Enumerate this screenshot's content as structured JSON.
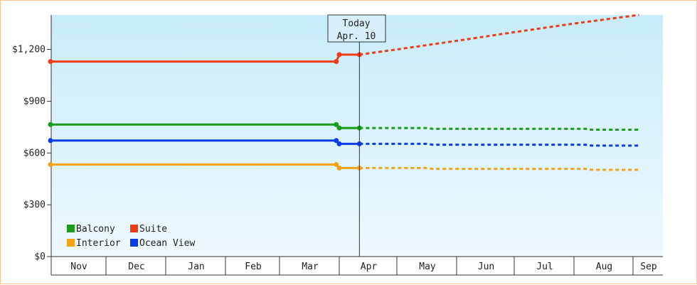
{
  "chart_data": {
    "type": "line",
    "y_axis": {
      "ticks": [
        0,
        300,
        600,
        900,
        1200
      ],
      "tick_labels": [
        "$0",
        "$300",
        "$600",
        "$900",
        "$1,200"
      ],
      "ylim": [
        0,
        1400
      ]
    },
    "x_axis": {
      "months": [
        "Nov",
        "Dec",
        "Jan",
        "Feb",
        "Mar",
        "Apr",
        "May",
        "Jun",
        "Jul",
        "Aug",
        "Sep"
      ]
    },
    "today_marker": {
      "line1": "Today",
      "line2": "Apr. 10"
    },
    "series": [
      {
        "name": "Suite",
        "color": "#ee3d16",
        "historical": [
          [
            0,
            1130
          ],
          [
            4.95,
            1130
          ],
          [
            5.0,
            1170
          ],
          [
            5.35,
            1170
          ]
        ],
        "forecast": [
          [
            5.35,
            1170
          ],
          [
            6.0,
            1200
          ],
          [
            7.0,
            1250
          ],
          [
            8.0,
            1300
          ],
          [
            9.0,
            1350
          ],
          [
            10.2,
            1400
          ]
        ]
      },
      {
        "name": "Balcony",
        "color": "#1a9b1a",
        "historical": [
          [
            0,
            765
          ],
          [
            4.95,
            765
          ],
          [
            5.0,
            745
          ],
          [
            5.35,
            745
          ]
        ],
        "forecast": [
          [
            5.35,
            745
          ],
          [
            6.5,
            745
          ],
          [
            6.6,
            740
          ],
          [
            9.2,
            740
          ],
          [
            9.3,
            735
          ],
          [
            10.2,
            735
          ]
        ]
      },
      {
        "name": "Ocean View",
        "color": "#0b3be8",
        "historical": [
          [
            0,
            672
          ],
          [
            4.95,
            672
          ],
          [
            5.0,
            653
          ],
          [
            5.35,
            653
          ]
        ],
        "forecast": [
          [
            5.35,
            653
          ],
          [
            6.5,
            653
          ],
          [
            6.6,
            648
          ],
          [
            9.2,
            648
          ],
          [
            9.3,
            643
          ],
          [
            10.2,
            643
          ]
        ]
      },
      {
        "name": "Interior",
        "color": "#f4a21a",
        "historical": [
          [
            0,
            533
          ],
          [
            4.95,
            533
          ],
          [
            5.0,
            513
          ],
          [
            5.35,
            513
          ]
        ],
        "forecast": [
          [
            5.35,
            513
          ],
          [
            6.5,
            513
          ],
          [
            6.6,
            508
          ],
          [
            9.2,
            508
          ],
          [
            9.3,
            503
          ],
          [
            10.2,
            503
          ]
        ]
      }
    ],
    "legend": [
      {
        "name": "Balcony",
        "color": "#1a9b1a"
      },
      {
        "name": "Suite",
        "color": "#ee3d16"
      },
      {
        "name": "Interior",
        "color": "#f4a21a"
      },
      {
        "name": "Ocean View",
        "color": "#0b3be8"
      }
    ],
    "legend_position": "bottom-left"
  }
}
